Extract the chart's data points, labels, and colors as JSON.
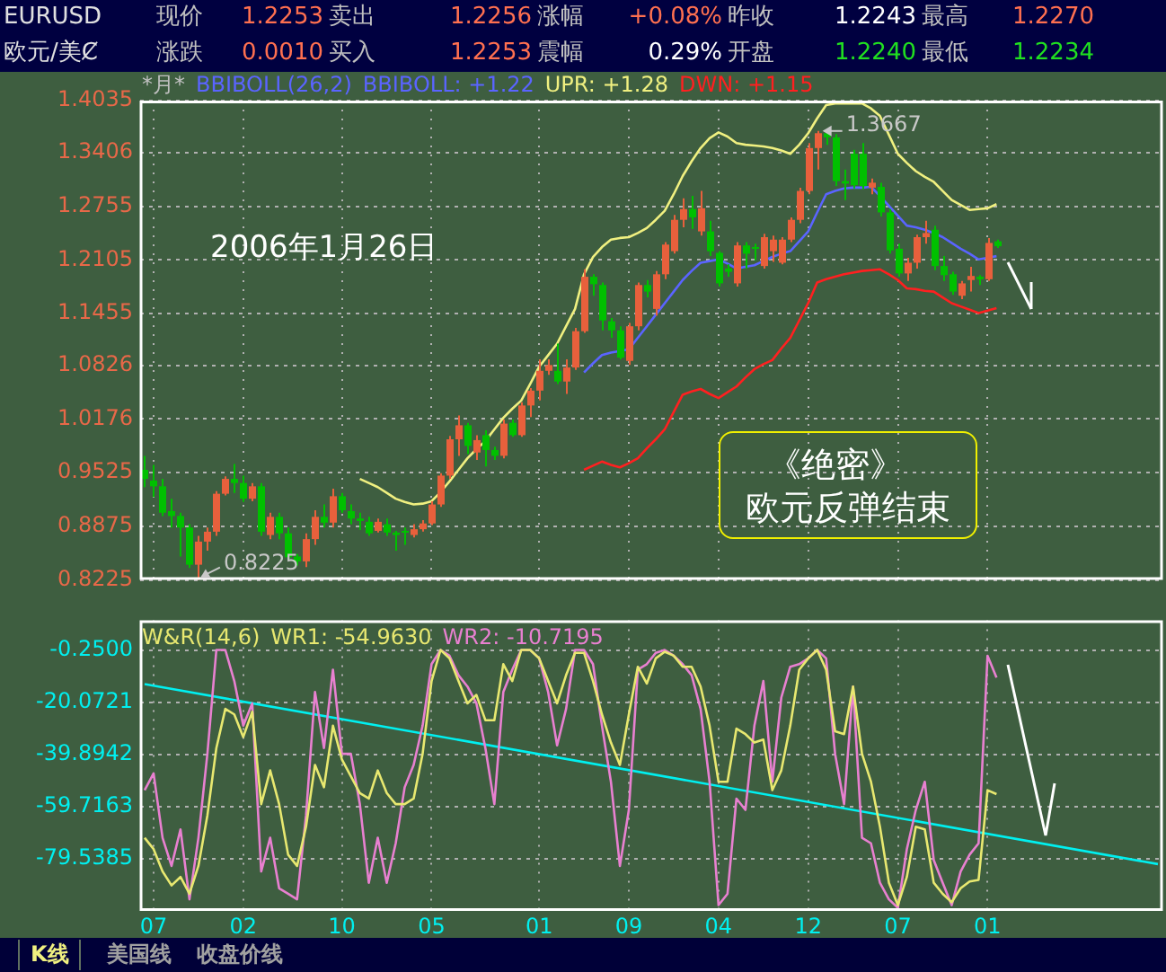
{
  "chart_data": [
    {
      "type": "other",
      "annotations": [
        "EURUSD",
        "现价",
        "1.2253",
        "卖出",
        "1.2256",
        "涨幅",
        "+0.08%",
        "昨收",
        "1.2243",
        "最高",
        "1.2270",
        "欧元/美Ȼ",
        "涨跌",
        "0.0010",
        "买入",
        "1.2253",
        "震幅",
        "0.29%",
        "开盘",
        "1.2240",
        "最低",
        "1.2234"
      ]
    },
    {
      "type": "candlestick",
      "title": "*月*",
      "subtitle": "BBIBOLL(26,2)",
      "categories": [
        null,
        "07",
        null,
        null,
        null,
        null,
        null,
        null,
        null,
        null,
        null,
        "02",
        null,
        null,
        null,
        null,
        null,
        null,
        null,
        null,
        null,
        null,
        "10",
        null,
        null,
        null,
        null,
        null,
        null,
        null,
        null,
        null,
        "05",
        null,
        null,
        null,
        null,
        null,
        null,
        null,
        null,
        null,
        null,
        null,
        "01",
        null,
        null,
        null,
        null,
        null,
        null,
        null,
        null,
        null,
        "09",
        null,
        null,
        null,
        null,
        null,
        null,
        null,
        null,
        null,
        "04",
        null,
        null,
        null,
        null,
        null,
        null,
        null,
        null,
        null,
        "12",
        null,
        null,
        null,
        null,
        null,
        null,
        null,
        null,
        null,
        "07",
        null,
        null,
        null,
        null,
        null,
        null,
        null,
        null,
        null,
        "01",
        null,
        null,
        null,
        null,
        null,
        null,
        null,
        null,
        null,
        null,
        null,
        null,
        null,
        null,
        null,
        null,
        null,
        null,
        null
      ],
      "ohlc": [
        [
          0.956,
          0.973,
          0.935,
          0.945
        ],
        [
          0.943,
          0.962,
          0.923,
          0.936
        ],
        [
          0.936,
          0.945,
          0.9,
          0.904
        ],
        [
          0.906,
          0.921,
          0.886,
          0.9
        ],
        [
          0.9,
          0.904,
          0.851,
          0.886
        ],
        [
          0.886,
          0.89,
          0.837,
          0.841
        ],
        [
          0.841,
          0.876,
          0.8225,
          0.869
        ],
        [
          0.869,
          0.886,
          0.858,
          0.881
        ],
        [
          0.881,
          0.93,
          0.876,
          0.927
        ],
        [
          0.927,
          0.948,
          0.925,
          0.945
        ],
        [
          0.945,
          0.963,
          0.928,
          0.94
        ],
        [
          0.94,
          0.949,
          0.917,
          0.921
        ],
        [
          0.921,
          0.94,
          0.918,
          0.936
        ],
        [
          0.936,
          0.94,
          0.876,
          0.881
        ],
        [
          0.877,
          0.904,
          0.872,
          0.899
        ],
        [
          0.899,
          0.904,
          0.872,
          0.879
        ],
        [
          0.879,
          0.886,
          0.846,
          0.85
        ],
        [
          0.851,
          0.854,
          0.84,
          0.845
        ],
        [
          0.845,
          0.879,
          0.838,
          0.872
        ],
        [
          0.872,
          0.907,
          0.865,
          0.899
        ],
        [
          0.899,
          0.914,
          0.886,
          0.892
        ],
        [
          0.892,
          0.933,
          0.886,
          0.924
        ],
        [
          0.924,
          0.928,
          0.904,
          0.907
        ],
        [
          0.906,
          0.914,
          0.89,
          0.897
        ],
        [
          0.897,
          0.904,
          0.883,
          0.894
        ],
        [
          0.893,
          0.899,
          0.876,
          0.879
        ],
        [
          0.882,
          0.897,
          0.88,
          0.893
        ],
        [
          0.89,
          0.897,
          0.876,
          0.88
        ],
        [
          0.88,
          0.882,
          0.858,
          0.877
        ],
        [
          0.882,
          0.886,
          0.865,
          0.88
        ],
        [
          0.877,
          0.89,
          0.874,
          0.884
        ],
        [
          0.884,
          0.895,
          0.881,
          0.891
        ],
        [
          0.891,
          0.918,
          0.889,
          0.914
        ],
        [
          0.914,
          0.952,
          0.911,
          0.949
        ],
        [
          0.949,
          0.997,
          0.945,
          0.993
        ],
        [
          0.993,
          1.022,
          0.973,
          1.01
        ],
        [
          1.01,
          1.013,
          0.975,
          0.985
        ],
        [
          0.977,
          0.998,
          0.968,
          0.992
        ],
        [
          0.998,
          1.004,
          0.96,
          0.98
        ],
        [
          0.98,
          0.984,
          0.968,
          0.973
        ],
        [
          0.973,
          1.017,
          0.97,
          1.012
        ],
        [
          1.013,
          1.017,
          0.996,
          0.998
        ],
        [
          0.998,
          1.038,
          0.996,
          1.034
        ],
        [
          1.034,
          1.055,
          1.02,
          1.052
        ],
        [
          1.052,
          1.09,
          1.04,
          1.076
        ],
        [
          1.076,
          1.09,
          1.071,
          1.083
        ],
        [
          1.076,
          1.109,
          1.06,
          1.063
        ],
        [
          1.063,
          1.09,
          1.048,
          1.08
        ],
        [
          1.08,
          1.128,
          1.077,
          1.124
        ],
        [
          1.124,
          1.199,
          1.122,
          1.19
        ],
        [
          1.19,
          1.193,
          1.167,
          1.181
        ],
        [
          1.18,
          1.183,
          1.125,
          1.137
        ],
        [
          1.136,
          1.14,
          1.116,
          1.125
        ],
        [
          1.125,
          1.13,
          1.09,
          1.092
        ],
        [
          1.088,
          1.134,
          1.083,
          1.13
        ],
        [
          1.13,
          1.183,
          1.125,
          1.18
        ],
        [
          1.18,
          1.186,
          1.165,
          1.172
        ],
        [
          1.151,
          1.197,
          1.143,
          1.193
        ],
        [
          1.193,
          1.232,
          1.187,
          1.229
        ],
        [
          1.221,
          1.265,
          1.218,
          1.259
        ],
        [
          1.259,
          1.285,
          1.25,
          1.272
        ],
        [
          1.272,
          1.288,
          1.248,
          1.262
        ],
        [
          1.245,
          1.294,
          1.24,
          1.273
        ],
        [
          1.245,
          1.258,
          1.215,
          1.221
        ],
        [
          1.219,
          1.221,
          1.178,
          1.182
        ],
        [
          1.2,
          1.205,
          1.19,
          1.196
        ],
        [
          1.182,
          1.232,
          1.178,
          1.228
        ],
        [
          1.228,
          1.232,
          1.2,
          1.218
        ],
        [
          1.226,
          1.23,
          1.21,
          1.224
        ],
        [
          1.203,
          1.242,
          1.2,
          1.238
        ],
        [
          1.221,
          1.24,
          1.208,
          1.235
        ],
        [
          1.207,
          1.238,
          1.205,
          1.235
        ],
        [
          1.235,
          1.262,
          1.232,
          1.259
        ],
        [
          1.259,
          1.298,
          1.255,
          1.294
        ],
        [
          1.294,
          1.352,
          1.29,
          1.346
        ],
        [
          1.346,
          1.3667,
          1.32,
          1.364
        ],
        [
          1.364,
          1.366,
          1.35,
          1.359
        ],
        [
          1.359,
          1.363,
          1.3,
          1.306
        ],
        [
          1.306,
          1.32,
          1.283,
          1.303
        ],
        [
          1.339,
          1.344,
          1.297,
          1.301
        ],
        [
          1.339,
          1.352,
          1.296,
          1.3
        ],
        [
          1.298,
          1.309,
          1.29,
          1.304
        ],
        [
          1.299,
          1.304,
          1.263,
          1.268
        ],
        [
          1.268,
          1.272,
          1.218,
          1.222
        ],
        [
          1.224,
          1.23,
          1.19,
          1.194
        ],
        [
          1.194,
          1.213,
          1.185,
          1.207
        ],
        [
          1.207,
          1.241,
          1.2,
          1.238
        ],
        [
          1.238,
          1.258,
          1.23,
          1.243
        ],
        [
          1.247,
          1.252,
          1.198,
          1.203
        ],
        [
          1.203,
          1.215,
          1.185,
          1.192
        ],
        [
          1.193,
          1.196,
          1.168,
          1.172
        ],
        [
          1.167,
          1.185,
          1.163,
          1.182
        ],
        [
          1.186,
          1.202,
          1.172,
          1.191
        ],
        [
          1.19,
          1.192,
          1.18,
          1.187
        ],
        [
          1.187,
          1.237,
          1.185,
          1.231
        ],
        [
          1.233,
          1.235,
          1.225,
          1.227
        ],
        null,
        null,
        null,
        null,
        null,
        null,
        null,
        null,
        null,
        null,
        null,
        null,
        null,
        null,
        null,
        null,
        null,
        null
      ],
      "colors": [
        "#00c000",
        "#00c000",
        "#00c000",
        "#00c000",
        "#00c000",
        "#00c000",
        "#e8603c",
        "#e8603c",
        "#e8603c",
        "#e8603c",
        "#00c000",
        "#00c000",
        "#e8603c",
        "#00c000",
        "#e8603c",
        "#00c000",
        "#00c000",
        "#00c000",
        "#e8603c",
        "#e8603c",
        "#00c000",
        "#e8603c",
        "#00c000",
        "#00c000",
        "#00c000",
        "#00c000",
        "#e8603c",
        "#00c000",
        "#00c000",
        "#00c000",
        "#e8603c",
        "#e8603c",
        "#e8603c",
        "#e8603c",
        "#e8603c",
        "#e8603c",
        "#00c000",
        "#e8603c",
        "#00c000",
        "#00c000",
        "#e8603c",
        "#00c000",
        "#e8603c",
        "#e8603c",
        "#e8603c",
        "#e8603c",
        "#00c000",
        "#e8603c",
        "#e8603c",
        "#e8603c",
        "#00c000",
        "#00c000",
        "#00c000",
        "#00c000",
        "#e8603c",
        "#e8603c",
        "#00c000",
        "#e8603c",
        "#e8603c",
        "#e8603c",
        "#e8603c",
        "#00c000",
        "#e8603c",
        "#00c000",
        "#00c000",
        "#00c000",
        "#e8603c",
        "#00c000",
        "#00c000",
        "#e8603c",
        "#e8603c",
        "#e8603c",
        "#e8603c",
        "#e8603c",
        "#e8603c",
        "#e8603c",
        "#00c000",
        "#00c000",
        "#00c000",
        "#00c000",
        "#00c000",
        "#e8603c",
        "#00c000",
        "#00c000",
        "#00c000",
        "#e8603c",
        "#e8603c",
        "#e8603c",
        "#00c000",
        "#00c000",
        "#00c000",
        "#e8603c",
        "#e8603c",
        "#00c000",
        "#e8603c",
        "#00c000",
        null,
        null,
        null,
        null,
        null,
        null,
        null,
        null,
        null,
        null,
        null,
        null,
        null,
        null,
        null,
        null,
        null,
        null
      ],
      "series": [
        {
          "name": "BBIBOLL: +1.22",
          "type": "line",
          "color": "#5a64ff",
          "values": [
            null,
            null,
            null,
            null,
            null,
            null,
            null,
            null,
            null,
            null,
            null,
            null,
            null,
            null,
            null,
            null,
            null,
            null,
            null,
            null,
            null,
            null,
            null,
            null,
            null,
            null,
            null,
            null,
            null,
            null,
            null,
            null,
            null,
            null,
            null,
            null,
            null,
            null,
            null,
            null,
            null,
            null,
            null,
            null,
            null,
            null,
            null,
            null,
            null,
            1.074,
            1.085,
            1.095,
            1.098,
            1.1,
            1.102,
            1.116,
            1.13,
            1.144,
            1.158,
            1.172,
            1.186,
            1.197,
            1.207,
            1.209,
            1.211,
            1.206,
            1.2,
            1.202,
            1.204,
            1.209,
            1.214,
            1.218,
            1.221,
            1.233,
            1.245,
            1.268,
            1.29,
            1.294,
            1.297,
            1.298,
            1.298,
            1.299,
            1.288,
            1.276,
            1.264,
            1.252,
            1.25,
            1.247,
            1.243,
            1.238,
            1.231,
            1.224,
            1.218,
            1.211,
            1.213,
            1.215,
            null,
            null,
            null,
            null,
            null,
            null,
            null,
            null,
            null,
            null,
            null,
            null,
            null,
            null,
            null,
            null,
            null,
            null
          ]
        },
        {
          "name": "UPR: +1.28",
          "type": "line",
          "color": "#f0f080",
          "values": [
            null,
            null,
            null,
            null,
            null,
            null,
            null,
            null,
            null,
            null,
            null,
            null,
            null,
            null,
            null,
            null,
            null,
            null,
            null,
            null,
            null,
            null,
            null,
            null,
            0.945,
            0.94,
            0.935,
            0.928,
            0.921,
            0.917,
            0.914,
            0.915,
            0.918,
            0.929,
            0.942,
            0.956,
            0.97,
            0.981,
            0.991,
            1.005,
            1.019,
            1.03,
            1.04,
            1.06,
            1.081,
            1.095,
            1.109,
            1.13,
            1.151,
            1.193,
            1.214,
            1.226,
            1.235,
            1.237,
            1.238,
            1.243,
            1.249,
            1.259,
            1.27,
            1.29,
            1.312,
            1.33,
            1.346,
            1.358,
            1.365,
            1.36,
            1.352,
            1.35,
            1.349,
            1.348,
            1.346,
            1.343,
            1.339,
            1.35,
            1.364,
            1.382,
            1.398,
            1.4,
            1.4,
            1.4,
            1.4,
            1.394,
            1.385,
            1.362,
            1.339,
            1.328,
            1.318,
            1.311,
            1.305,
            1.294,
            1.283,
            1.277,
            1.271,
            1.272,
            1.273,
            1.278,
            null,
            null,
            null,
            null,
            null,
            null,
            null,
            null,
            null,
            null,
            null,
            null,
            null,
            null,
            null,
            null,
            null,
            null
          ]
        },
        {
          "name": "DWN: +1.15",
          "type": "line",
          "color": "#ff2020",
          "values": [
            null,
            null,
            null,
            null,
            null,
            null,
            null,
            null,
            null,
            null,
            null,
            null,
            null,
            null,
            null,
            null,
            null,
            null,
            null,
            null,
            null,
            null,
            null,
            null,
            null,
            null,
            null,
            null,
            null,
            null,
            null,
            null,
            null,
            null,
            null,
            null,
            null,
            null,
            null,
            null,
            null,
            null,
            null,
            null,
            null,
            null,
            null,
            null,
            null,
            0.956,
            0.961,
            0.966,
            0.962,
            0.959,
            0.964,
            0.97,
            0.982,
            0.993,
            1.005,
            1.026,
            1.047,
            1.051,
            1.054,
            1.048,
            1.043,
            1.05,
            1.057,
            1.068,
            1.078,
            1.084,
            1.089,
            1.103,
            1.116,
            1.137,
            1.158,
            1.183,
            1.187,
            1.19,
            1.193,
            1.195,
            1.197,
            1.198,
            1.199,
            1.193,
            1.186,
            1.176,
            1.175,
            1.173,
            1.172,
            1.165,
            1.158,
            1.154,
            1.15,
            1.146,
            1.149,
            1.152,
            null,
            null,
            null,
            null,
            null,
            null,
            null,
            null,
            null,
            null,
            null,
            null,
            null,
            null,
            null,
            null,
            null,
            null
          ]
        }
      ],
      "ylim": [
        0.8225,
        1.4035
      ],
      "yticks": [
        0.8225,
        0.8875,
        0.9525,
        1.0176,
        1.0826,
        1.1455,
        1.2105,
        1.2755,
        1.3406,
        1.4035
      ],
      "tick_labels": "y",
      "grid": true,
      "legend": "top left",
      "marker": "none",
      "annotations": [
        "2006年1月26日",
        "《绝密》",
        "欧元反弹结束",
        "1.3667",
        "0.8225"
      ]
    },
    {
      "type": "line",
      "title": "W&R(14,6)",
      "categories": [
        null,
        "07",
        null,
        null,
        null,
        null,
        null,
        null,
        null,
        null,
        null,
        "02",
        null,
        null,
        null,
        null,
        null,
        null,
        null,
        null,
        null,
        null,
        "10",
        null,
        null,
        null,
        null,
        null,
        null,
        null,
        null,
        null,
        "05",
        null,
        null,
        null,
        null,
        null,
        null,
        null,
        null,
        null,
        null,
        null,
        "01",
        null,
        null,
        null,
        null,
        null,
        null,
        null,
        null,
        null,
        "09",
        null,
        null,
        null,
        null,
        null,
        null,
        null,
        null,
        null,
        "04",
        null,
        null,
        null,
        null,
        null,
        null,
        null,
        null,
        null,
        "12",
        null,
        null,
        null,
        null,
        null,
        null,
        null,
        null,
        null,
        "07",
        null,
        null,
        null,
        null,
        null,
        null,
        null,
        null,
        null,
        "01",
        null,
        null,
        null,
        null,
        null,
        null,
        null,
        null,
        null,
        null,
        null,
        null,
        null,
        null,
        null,
        null,
        null,
        null,
        null
      ],
      "series": [
        {
          "name": "WR1: -54.9630",
          "color": "#e8e870",
          "values": [
            -71.6,
            -75.9,
            -84.4,
            -89.7,
            -86.5,
            -92.9,
            -82.3,
            -63.1,
            -37.5,
            -22.6,
            -24.7,
            -33.3,
            -23.7,
            -58.8,
            -46.0,
            -58.8,
            -78.0,
            -82.3,
            -67.4,
            -43.9,
            -52.4,
            -29.0,
            -41.8,
            -48.2,
            -54.6,
            -56.7,
            -46.0,
            -54.6,
            -58.8,
            -58.8,
            -56.7,
            -39.7,
            -12.0,
            -0.2,
            -3.4,
            -12.0,
            -20.5,
            -17.3,
            -26.9,
            -26.9,
            -5.6,
            -12.0,
            -0.2,
            -0.2,
            -3.4,
            -12.0,
            -20.5,
            -9.8,
            -1.3,
            -1.3,
            -12.0,
            -24.7,
            -35.4,
            -43.9,
            -24.7,
            -6.6,
            -13.0,
            -3.4,
            -0.9,
            -2.4,
            -6.6,
            -6.6,
            -14.1,
            -29.0,
            -50.3,
            -50.3,
            -30.1,
            -32.2,
            -35.4,
            -34.3,
            -53.5,
            -46.0,
            -29.0,
            -7.7,
            -3.4,
            -0.2,
            -7.7,
            -31.1,
            -32.2,
            -14.1,
            -39.7,
            -50.3,
            -67.4,
            -88.7,
            -97.2,
            -86.5,
            -67.4,
            -68.4,
            -88.7,
            -92.9,
            -96.1,
            -90.8,
            -88.2,
            -87.6,
            -53.5,
            -55.0,
            null,
            null,
            null,
            null,
            null,
            null,
            null,
            null,
            null,
            null,
            null,
            null,
            null,
            null,
            null,
            null,
            null,
            null
          ]
        },
        {
          "name": "WR2: -10.7195",
          "color": "#e880d0",
          "values": [
            -53.5,
            -47.1,
            -71.6,
            -82.3,
            -68.4,
            -95.0,
            -71.6,
            -39.7,
            -0.2,
            -0.2,
            -12.0,
            -29.0,
            -20.5,
            -84.4,
            -71.6,
            -90.8,
            -92.9,
            -95.0,
            -63.1,
            -16.2,
            -37.5,
            -7.7,
            -39.7,
            -39.7,
            -58.8,
            -88.7,
            -71.6,
            -88.7,
            -73.7,
            -52.4,
            -43.9,
            -29.0,
            -5.6,
            -0.2,
            -2.4,
            -9.8,
            -14.1,
            -20.5,
            -37.5,
            -58.8,
            -16.2,
            -7.7,
            -0.2,
            -0.2,
            -3.4,
            -16.2,
            -36.5,
            -22.6,
            -0.2,
            -0.2,
            -5.6,
            -29.0,
            -50.3,
            -82.3,
            -61.0,
            -7.7,
            -5.6,
            -1.3,
            -0.2,
            -2.4,
            -5.6,
            -9.8,
            -22.6,
            -50.3,
            -97.2,
            -92.9,
            -56.7,
            -61.0,
            -29.0,
            -12.0,
            -50.3,
            -18.3,
            -6.6,
            -5.6,
            -3.4,
            -0.2,
            -3.4,
            -39.7,
            -58.8,
            -14.1,
            -71.6,
            -73.7,
            -88.7,
            -95.0,
            -98.2,
            -75.9,
            -61.0,
            -50.3,
            -80.1,
            -88.7,
            -97.2,
            -84.4,
            -78.0,
            -73.7,
            -2.4,
            -10.7,
            null,
            null,
            null,
            null,
            null,
            null,
            null,
            null,
            null,
            null,
            null,
            null,
            null,
            null,
            null,
            null,
            null,
            null
          ]
        },
        {
          "type": "line",
          "color": "#00f0f0",
          "values": [
            -13.2,
            null,
            null,
            null,
            null,
            null,
            null,
            null,
            null,
            null,
            null,
            null,
            null,
            null,
            null,
            null,
            null,
            null,
            null,
            null,
            null,
            null,
            null,
            null,
            null,
            null,
            null,
            null,
            null,
            null,
            null,
            null,
            null,
            null,
            null,
            null,
            null,
            null,
            null,
            null,
            null,
            null,
            null,
            null,
            null,
            null,
            null,
            null,
            null,
            null,
            null,
            null,
            null,
            null,
            null,
            null,
            null,
            null,
            null,
            null,
            null,
            null,
            null,
            null,
            null,
            null,
            null,
            null,
            null,
            null,
            null,
            null,
            null,
            null,
            null,
            null,
            null,
            null,
            null,
            null,
            null,
            null,
            null,
            null,
            null,
            null,
            null,
            null,
            null,
            null,
            null,
            null,
            null,
            null,
            null,
            null,
            null,
            null,
            null,
            null,
            null,
            null,
            null,
            null,
            null,
            null,
            null,
            null,
            null,
            null,
            null,
            null,
            null,
            -81.6
          ]
        }
      ],
      "ylim": [
        -99.4,
        11.1
      ],
      "yticks": [
        {
          "value": -0.25,
          "label": "-0.2500"
        },
        {
          "value": -20.0721,
          "label": "-20.0721"
        },
        {
          "value": -39.8942,
          "label": "-39.8942"
        },
        {
          "value": -59.7163,
          "label": "-59.7163"
        },
        {
          "value": -79.5385,
          "label": "-79.5385"
        }
      ],
      "grid": true,
      "legend": "top left",
      "marker": "none"
    },
    {
      "type": "other",
      "annotations": [
        "K线",
        "美国线",
        "收盘价线"
      ]
    }
  ]
}
